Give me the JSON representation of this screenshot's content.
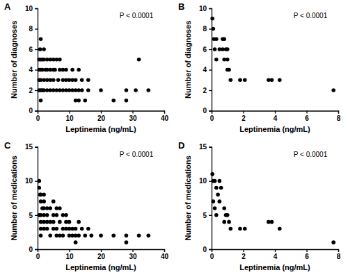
{
  "chart_data": [
    {
      "type": "scatter",
      "title": "A",
      "annotation": "P < 0.0001",
      "x_label": "Leptinemia (ng/mL)",
      "y_label": "Number of diagnoses",
      "color": "#000000",
      "marker": "circle",
      "xlim": [
        0,
        40
      ],
      "xticks": [
        0,
        10,
        20,
        30,
        40
      ],
      "ylim": [
        0,
        10
      ],
      "yticks": [
        0,
        2,
        4,
        6,
        8,
        10
      ],
      "x": [
        1,
        0.8,
        2,
        0.5,
        1,
        1.5,
        2,
        3,
        4,
        5,
        6,
        7,
        32,
        0.5,
        1,
        1.5,
        2.5,
        3,
        4,
        5,
        5.5,
        7,
        8,
        9,
        11,
        13,
        0.5,
        1,
        2,
        3,
        4,
        5,
        6.5,
        8,
        9,
        10,
        11,
        12,
        14,
        16,
        0.5,
        1,
        1.5,
        2,
        3,
        4,
        5,
        6,
        7,
        8,
        9,
        10,
        11,
        12,
        13,
        14,
        16,
        20,
        28,
        31,
        35,
        1,
        12,
        13,
        15,
        24,
        28
      ],
      "values": [
        7,
        6,
        6,
        5,
        5,
        5,
        5,
        5,
        5,
        5,
        5,
        5,
        5,
        4,
        4,
        4,
        4,
        4,
        4,
        4,
        4,
        4,
        4,
        4,
        4,
        4,
        3,
        3,
        3,
        3,
        3,
        3,
        3,
        3,
        3,
        3,
        3,
        3,
        3,
        3,
        2,
        2,
        2,
        2,
        2,
        2,
        2,
        2,
        2,
        2,
        2,
        2,
        2,
        2,
        2,
        2,
        2,
        2,
        2,
        2,
        2,
        1,
        1,
        1,
        1,
        1,
        1
      ]
    },
    {
      "type": "scatter",
      "title": "B",
      "annotation": "P < 0.0001",
      "x_label": "Leptinemia (ng/mL)",
      "y_label": "Number of diagnoses",
      "color": "#000000",
      "marker": "circle",
      "xlim": [
        0,
        8
      ],
      "xticks": [
        0,
        2,
        4,
        6,
        8
      ],
      "ylim": [
        0,
        10
      ],
      "yticks": [
        0,
        2,
        4,
        6,
        8,
        10
      ],
      "x": [
        0.05,
        0.1,
        0.15,
        0.3,
        0.2,
        0.5,
        0.7,
        0.8,
        0.7,
        0.9,
        0.3,
        0.8,
        1.0,
        1.0,
        1.1,
        1.2,
        1.0,
        1.8,
        2.1,
        3.6,
        3.8,
        4.3,
        7.7
      ],
      "values": [
        9,
        8,
        7,
        7,
        6,
        6,
        7,
        7,
        6,
        6,
        5,
        5,
        5,
        4,
        4,
        3,
        6,
        3,
        3,
        3,
        3,
        3,
        2
      ]
    },
    {
      "type": "scatter",
      "title": "C",
      "annotation": "P < 0.0001",
      "x_label": "Leptinemia (ng/mL)",
      "y_label": "Number of medications",
      "color": "#000000",
      "marker": "circle",
      "xlim": [
        0,
        40
      ],
      "xticks": [
        0,
        10,
        20,
        30,
        40
      ],
      "ylim": [
        0,
        15
      ],
      "yticks": [
        0,
        5,
        10,
        15
      ],
      "x": [
        0.5,
        0.5,
        1,
        0.8,
        2,
        1,
        1.5,
        2,
        3,
        4,
        0.5,
        1,
        2,
        3,
        5,
        6,
        1,
        2,
        3,
        4,
        5,
        7,
        9,
        10,
        13,
        1,
        2,
        3,
        5,
        6,
        8,
        9,
        10,
        11,
        12,
        14,
        16,
        1,
        4,
        6,
        7,
        8,
        10,
        11,
        12,
        13,
        15,
        17,
        20,
        24,
        28,
        32,
        35,
        12,
        28,
        8,
        9,
        7,
        5,
        2,
        6
      ],
      "values": [
        10,
        9,
        8,
        8,
        7,
        7,
        6,
        6,
        6,
        6,
        5,
        5,
        5,
        5,
        5,
        5,
        4,
        4,
        4,
        4,
        4,
        4,
        4,
        4,
        4,
        3,
        3,
        3,
        3,
        3,
        3,
        3,
        3,
        3,
        3,
        3,
        3,
        2,
        2,
        2,
        2,
        2,
        2,
        2,
        2,
        2,
        2,
        2,
        2,
        2,
        2,
        2,
        2,
        1,
        1,
        5,
        5,
        6,
        7,
        8,
        6
      ]
    },
    {
      "type": "scatter",
      "title": "D",
      "annotation": "P < 0.0001",
      "x_label": "Leptinemia (ng/mL)",
      "y_label": "Number of medications",
      "color": "#000000",
      "marker": "circle",
      "xlim": [
        0,
        8
      ],
      "xticks": [
        0,
        2,
        4,
        6,
        8
      ],
      "ylim": [
        0,
        15
      ],
      "yticks": [
        0,
        5,
        10,
        15
      ],
      "x": [
        0.05,
        0.1,
        0.2,
        0.5,
        0.3,
        0.4,
        0.6,
        0.1,
        0.2,
        0.5,
        0.3,
        0.8,
        0.9,
        1.0,
        1.1,
        1.2,
        0.8,
        1.8,
        2.1,
        3.6,
        3.8,
        4.3,
        7.7
      ],
      "values": [
        11,
        10,
        10,
        10,
        9,
        8,
        9,
        7,
        6,
        7,
        5,
        6,
        5,
        5,
        4,
        3,
        4,
        3,
        3,
        4,
        4,
        3,
        1
      ]
    }
  ]
}
